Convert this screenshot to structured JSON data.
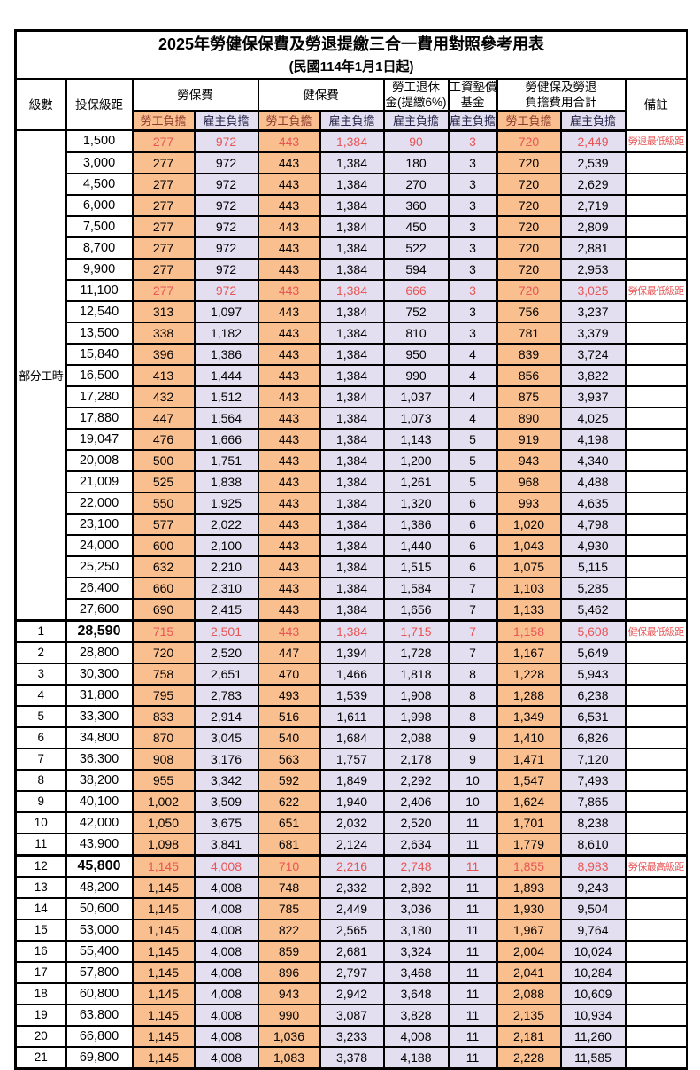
{
  "title": "2025年勞健保保費及勞退提繳三合一費用對照參考用表",
  "subtitle": "(民國114年1月1日起)",
  "columns": {
    "level": "級數",
    "bracket": "投保級距",
    "labor_insurance": "勞保費",
    "health_insurance": "健保費",
    "pension_line1": "勞工退休",
    "pension_line2": "金(提繳6%)",
    "wage_fund_line1": "工資墊償",
    "wage_fund_line2": "基金",
    "total_line1": "勞健保及勞退",
    "total_line2": "負擔費用合計",
    "remark": "備註",
    "employee": "勞工負擔",
    "employer": "雇主負擔"
  },
  "part_time_label": "部分工時",
  "colors": {
    "employee_bg": "#FABF8F",
    "employer_bg": "#E3DFF0",
    "employee_label": "#8E3B2F",
    "employer_label": "#26264A",
    "highlight_text": "#E85555"
  },
  "rows": [
    {
      "level": "",
      "bracket": "1,500",
      "values": [
        "277",
        "972",
        "443",
        "1,384",
        "90",
        "3",
        "720",
        "2,449"
      ],
      "note": "勞退最低級距",
      "highlight": true,
      "bold": false
    },
    {
      "level": "",
      "bracket": "3,000",
      "values": [
        "277",
        "972",
        "443",
        "1,384",
        "180",
        "3",
        "720",
        "2,539"
      ],
      "note": "",
      "highlight": false,
      "bold": false
    },
    {
      "level": "",
      "bracket": "4,500",
      "values": [
        "277",
        "972",
        "443",
        "1,384",
        "270",
        "3",
        "720",
        "2,629"
      ],
      "note": "",
      "highlight": false,
      "bold": false
    },
    {
      "level": "",
      "bracket": "6,000",
      "values": [
        "277",
        "972",
        "443",
        "1,384",
        "360",
        "3",
        "720",
        "2,719"
      ],
      "note": "",
      "highlight": false,
      "bold": false
    },
    {
      "level": "",
      "bracket": "7,500",
      "values": [
        "277",
        "972",
        "443",
        "1,384",
        "450",
        "3",
        "720",
        "2,809"
      ],
      "note": "",
      "highlight": false,
      "bold": false
    },
    {
      "level": "",
      "bracket": "8,700",
      "values": [
        "277",
        "972",
        "443",
        "1,384",
        "522",
        "3",
        "720",
        "2,881"
      ],
      "note": "",
      "highlight": false,
      "bold": false
    },
    {
      "level": "",
      "bracket": "9,900",
      "values": [
        "277",
        "972",
        "443",
        "1,384",
        "594",
        "3",
        "720",
        "2,953"
      ],
      "note": "",
      "highlight": false,
      "bold": false
    },
    {
      "level": "",
      "bracket": "11,100",
      "values": [
        "277",
        "972",
        "443",
        "1,384",
        "666",
        "3",
        "720",
        "3,025"
      ],
      "note": "勞保最低級距",
      "highlight": true,
      "bold": false
    },
    {
      "level": "",
      "bracket": "12,540",
      "values": [
        "313",
        "1,097",
        "443",
        "1,384",
        "752",
        "3",
        "756",
        "3,237"
      ],
      "note": "",
      "highlight": false,
      "bold": false
    },
    {
      "level": "",
      "bracket": "13,500",
      "values": [
        "338",
        "1,182",
        "443",
        "1,384",
        "810",
        "3",
        "781",
        "3,379"
      ],
      "note": "",
      "highlight": false,
      "bold": false
    },
    {
      "level": "",
      "bracket": "15,840",
      "values": [
        "396",
        "1,386",
        "443",
        "1,384",
        "950",
        "4",
        "839",
        "3,724"
      ],
      "note": "",
      "highlight": false,
      "bold": false
    },
    {
      "level": "",
      "bracket": "16,500",
      "values": [
        "413",
        "1,444",
        "443",
        "1,384",
        "990",
        "4",
        "856",
        "3,822"
      ],
      "note": "",
      "highlight": false,
      "bold": false
    },
    {
      "level": "",
      "bracket": "17,280",
      "values": [
        "432",
        "1,512",
        "443",
        "1,384",
        "1,037",
        "4",
        "875",
        "3,937"
      ],
      "note": "",
      "highlight": false,
      "bold": false
    },
    {
      "level": "",
      "bracket": "17,880",
      "values": [
        "447",
        "1,564",
        "443",
        "1,384",
        "1,073",
        "4",
        "890",
        "4,025"
      ],
      "note": "",
      "highlight": false,
      "bold": false
    },
    {
      "level": "",
      "bracket": "19,047",
      "values": [
        "476",
        "1,666",
        "443",
        "1,384",
        "1,143",
        "5",
        "919",
        "4,198"
      ],
      "note": "",
      "highlight": false,
      "bold": false
    },
    {
      "level": "",
      "bracket": "20,008",
      "values": [
        "500",
        "1,751",
        "443",
        "1,384",
        "1,200",
        "5",
        "943",
        "4,340"
      ],
      "note": "",
      "highlight": false,
      "bold": false
    },
    {
      "level": "",
      "bracket": "21,009",
      "values": [
        "525",
        "1,838",
        "443",
        "1,384",
        "1,261",
        "5",
        "968",
        "4,488"
      ],
      "note": "",
      "highlight": false,
      "bold": false
    },
    {
      "level": "",
      "bracket": "22,000",
      "values": [
        "550",
        "1,925",
        "443",
        "1,384",
        "1,320",
        "6",
        "993",
        "4,635"
      ],
      "note": "",
      "highlight": false,
      "bold": false
    },
    {
      "level": "",
      "bracket": "23,100",
      "values": [
        "577",
        "2,022",
        "443",
        "1,384",
        "1,386",
        "6",
        "1,020",
        "4,798"
      ],
      "note": "",
      "highlight": false,
      "bold": false
    },
    {
      "level": "",
      "bracket": "24,000",
      "values": [
        "600",
        "2,100",
        "443",
        "1,384",
        "1,440",
        "6",
        "1,043",
        "4,930"
      ],
      "note": "",
      "highlight": false,
      "bold": false
    },
    {
      "level": "",
      "bracket": "25,250",
      "values": [
        "632",
        "2,210",
        "443",
        "1,384",
        "1,515",
        "6",
        "1,075",
        "5,115"
      ],
      "note": "",
      "highlight": false,
      "bold": false
    },
    {
      "level": "",
      "bracket": "26,400",
      "values": [
        "660",
        "2,310",
        "443",
        "1,384",
        "1,584",
        "7",
        "1,103",
        "5,285"
      ],
      "note": "",
      "highlight": false,
      "bold": false
    },
    {
      "level": "",
      "bracket": "27,600",
      "values": [
        "690",
        "2,415",
        "443",
        "1,384",
        "1,656",
        "7",
        "1,133",
        "5,462"
      ],
      "note": "",
      "highlight": false,
      "bold": false
    },
    {
      "level": "1",
      "bracket": "28,590",
      "values": [
        "715",
        "2,501",
        "443",
        "1,384",
        "1,715",
        "7",
        "1,158",
        "5,608"
      ],
      "note": "健保最低級距",
      "highlight": true,
      "bold": true
    },
    {
      "level": "2",
      "bracket": "28,800",
      "values": [
        "720",
        "2,520",
        "447",
        "1,394",
        "1,728",
        "7",
        "1,167",
        "5,649"
      ],
      "note": "",
      "highlight": false,
      "bold": false
    },
    {
      "level": "3",
      "bracket": "30,300",
      "values": [
        "758",
        "2,651",
        "470",
        "1,466",
        "1,818",
        "8",
        "1,228",
        "5,943"
      ],
      "note": "",
      "highlight": false,
      "bold": false
    },
    {
      "level": "4",
      "bracket": "31,800",
      "values": [
        "795",
        "2,783",
        "493",
        "1,539",
        "1,908",
        "8",
        "1,288",
        "6,238"
      ],
      "note": "",
      "highlight": false,
      "bold": false
    },
    {
      "level": "5",
      "bracket": "33,300",
      "values": [
        "833",
        "2,914",
        "516",
        "1,611",
        "1,998",
        "8",
        "1,349",
        "6,531"
      ],
      "note": "",
      "highlight": false,
      "bold": false
    },
    {
      "level": "6",
      "bracket": "34,800",
      "values": [
        "870",
        "3,045",
        "540",
        "1,684",
        "2,088",
        "9",
        "1,410",
        "6,826"
      ],
      "note": "",
      "highlight": false,
      "bold": false
    },
    {
      "level": "7",
      "bracket": "36,300",
      "values": [
        "908",
        "3,176",
        "563",
        "1,757",
        "2,178",
        "9",
        "1,471",
        "7,120"
      ],
      "note": "",
      "highlight": false,
      "bold": false
    },
    {
      "level": "8",
      "bracket": "38,200",
      "values": [
        "955",
        "3,342",
        "592",
        "1,849",
        "2,292",
        "10",
        "1,547",
        "7,493"
      ],
      "note": "",
      "highlight": false,
      "bold": false
    },
    {
      "level": "9",
      "bracket": "40,100",
      "values": [
        "1,002",
        "3,509",
        "622",
        "1,940",
        "2,406",
        "10",
        "1,624",
        "7,865"
      ],
      "note": "",
      "highlight": false,
      "bold": false
    },
    {
      "level": "10",
      "bracket": "42,000",
      "values": [
        "1,050",
        "3,675",
        "651",
        "2,032",
        "2,520",
        "11",
        "1,701",
        "8,238"
      ],
      "note": "",
      "highlight": false,
      "bold": false
    },
    {
      "level": "11",
      "bracket": "43,900",
      "values": [
        "1,098",
        "3,841",
        "681",
        "2,124",
        "2,634",
        "11",
        "1,779",
        "8,610"
      ],
      "note": "",
      "highlight": false,
      "bold": false
    },
    {
      "level": "12",
      "bracket": "45,800",
      "values": [
        "1,145",
        "4,008",
        "710",
        "2,216",
        "2,748",
        "11",
        "1,855",
        "8,983"
      ],
      "note": "勞保最高級距",
      "highlight": true,
      "bold": true
    },
    {
      "level": "13",
      "bracket": "48,200",
      "values": [
        "1,145",
        "4,008",
        "748",
        "2,332",
        "2,892",
        "11",
        "1,893",
        "9,243"
      ],
      "note": "",
      "highlight": false,
      "bold": false
    },
    {
      "level": "14",
      "bracket": "50,600",
      "values": [
        "1,145",
        "4,008",
        "785",
        "2,449",
        "3,036",
        "11",
        "1,930",
        "9,504"
      ],
      "note": "",
      "highlight": false,
      "bold": false
    },
    {
      "level": "15",
      "bracket": "53,000",
      "values": [
        "1,145",
        "4,008",
        "822",
        "2,565",
        "3,180",
        "11",
        "1,967",
        "9,764"
      ],
      "note": "",
      "highlight": false,
      "bold": false
    },
    {
      "level": "16",
      "bracket": "55,400",
      "values": [
        "1,145",
        "4,008",
        "859",
        "2,681",
        "3,324",
        "11",
        "2,004",
        "10,024"
      ],
      "note": "",
      "highlight": false,
      "bold": false
    },
    {
      "level": "17",
      "bracket": "57,800",
      "values": [
        "1,145",
        "4,008",
        "896",
        "2,797",
        "3,468",
        "11",
        "2,041",
        "10,284"
      ],
      "note": "",
      "highlight": false,
      "bold": false
    },
    {
      "level": "18",
      "bracket": "60,800",
      "values": [
        "1,145",
        "4,008",
        "943",
        "2,942",
        "3,648",
        "11",
        "2,088",
        "10,609"
      ],
      "note": "",
      "highlight": false,
      "bold": false
    },
    {
      "level": "19",
      "bracket": "63,800",
      "values": [
        "1,145",
        "4,008",
        "990",
        "3,087",
        "3,828",
        "11",
        "2,135",
        "10,934"
      ],
      "note": "",
      "highlight": false,
      "bold": false
    },
    {
      "level": "20",
      "bracket": "66,800",
      "values": [
        "1,145",
        "4,008",
        "1,036",
        "3,233",
        "4,008",
        "11",
        "2,181",
        "11,260"
      ],
      "note": "",
      "highlight": false,
      "bold": false
    },
    {
      "level": "21",
      "bracket": "69,800",
      "values": [
        "1,145",
        "4,008",
        "1,083",
        "3,378",
        "4,188",
        "11",
        "2,228",
        "11,585"
      ],
      "note": "",
      "highlight": false,
      "bold": false
    }
  ]
}
